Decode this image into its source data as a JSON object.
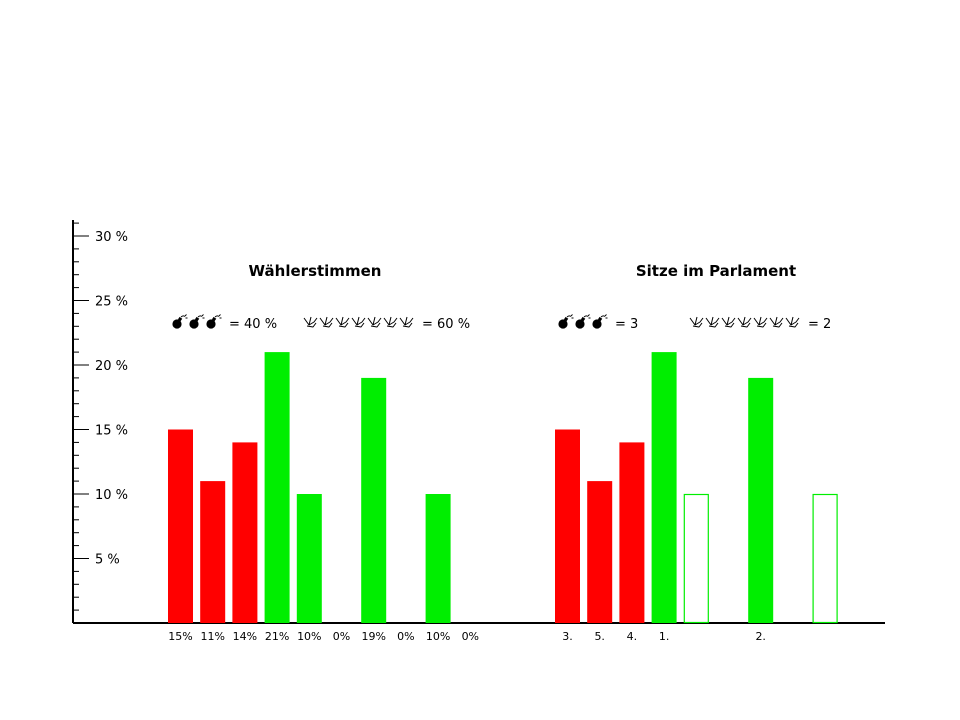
{
  "colors": {
    "red": "#ff0000",
    "green": "#00ee00",
    "axis": "#000000"
  },
  "chart_data": [
    {
      "type": "bar",
      "title": "Wählerstimmen",
      "ylim": [
        0,
        30
      ],
      "y_ticks": [
        "5 %",
        "10 %",
        "15 %",
        "20 %",
        "25 %",
        "30 %"
      ],
      "legend": {
        "red_icon": "bomb-icon",
        "red_count": 3,
        "red_text": "= 40 %",
        "green_icon": "dove-icon",
        "green_count": 7,
        "green_text": "= 60 %"
      },
      "categories": [
        "15%",
        "11%",
        "14%",
        "21%",
        "10%",
        "0%",
        "19%",
        "0%",
        "10%",
        "0%"
      ],
      "values": [
        15,
        11,
        14,
        21,
        10,
        0,
        19,
        0,
        10,
        0
      ],
      "bar_colors": [
        "red",
        "red",
        "red",
        "green",
        "green",
        "green",
        "green",
        "green",
        "green",
        "green"
      ],
      "bar_fill": [
        "solid",
        "solid",
        "solid",
        "solid",
        "solid",
        "solid",
        "solid",
        "solid",
        "solid",
        "solid"
      ]
    },
    {
      "type": "bar",
      "title": "Sitze im Parlament",
      "ylim": [
        0,
        30
      ],
      "legend": {
        "red_icon": "bomb-icon",
        "red_count": 3,
        "red_text": "= 3",
        "green_icon": "dove-icon",
        "green_count": 7,
        "green_text": "= 2"
      },
      "categories": [
        "3.",
        "5.",
        "4.",
        "1.",
        "",
        "",
        "2.",
        "",
        "",
        ""
      ],
      "values": [
        15,
        11,
        14,
        21,
        10,
        0,
        19,
        0,
        10,
        0
      ],
      "bar_colors": [
        "red",
        "red",
        "red",
        "green",
        "green",
        "green",
        "green",
        "green",
        "green",
        "green"
      ],
      "bar_fill": [
        "solid",
        "solid",
        "solid",
        "solid",
        "outline",
        "none",
        "solid",
        "none",
        "outline",
        "none"
      ]
    }
  ]
}
